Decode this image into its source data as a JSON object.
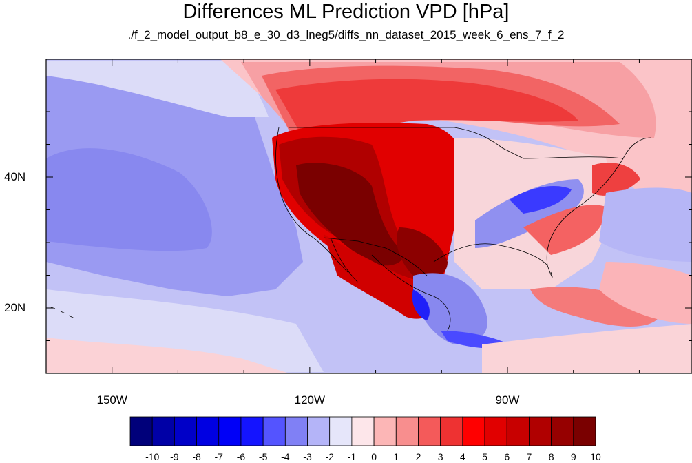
{
  "title": "Differences ML Prediction VPD [hPa]",
  "subtitle": "./f_2_model_output_b8_e_30_d3_lneg5/diffs_nn_dataset_2015_week_6_ens_7_f_2",
  "map": {
    "lon_range": [
      -160,
      -62
    ],
    "lat_range": [
      10,
      58
    ],
    "lon_ticks": [
      {
        "value": -150,
        "label": "150W"
      },
      {
        "value": -120,
        "label": "120W"
      },
      {
        "value": -90,
        "label": "90W"
      }
    ],
    "lat_ticks": [
      {
        "value": 40,
        "label": "40N"
      },
      {
        "value": 20,
        "label": "20N"
      }
    ],
    "colorbar": {
      "labels": [
        "-10",
        "-9",
        "-8",
        "-7",
        "-6",
        "-5",
        "-4",
        "-3",
        "-2",
        "-1",
        "0",
        "1",
        "2",
        "3",
        "4",
        "5",
        "6",
        "7",
        "8",
        "9",
        "10"
      ],
      "colors": [
        "#00007a",
        "#0000a6",
        "#0000c8",
        "#0000e2",
        "#0000f7",
        "#1414ff",
        "#5454ff",
        "#8080f5",
        "#b4b4f8",
        "#e6e6fa",
        "#fde6ea",
        "#fcb6b6",
        "#f88e8e",
        "#f45a5a",
        "#ee3232",
        "#ff0000",
        "#e10000",
        "#c80000",
        "#b00000",
        "#960000",
        "#7a0000"
      ]
    }
  }
}
